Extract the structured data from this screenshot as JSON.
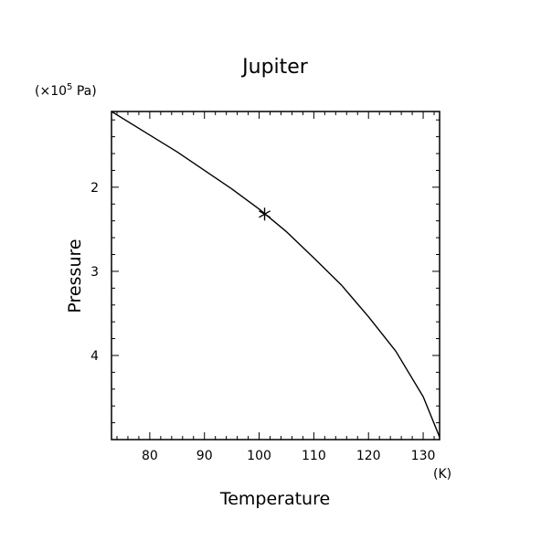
{
  "chart_data": {
    "type": "line",
    "title": "Jupiter",
    "xlabel": "Temperature",
    "ylabel": "Pressure",
    "x_unit": "(K)",
    "y_unit_prefix": "(×10",
    "y_unit_exp": "5",
    "y_unit_suffix": " Pa)",
    "xlim": [
      73,
      133
    ],
    "ylim": [
      1.1,
      5.0
    ],
    "y_inverted": true,
    "x_ticks": [
      80,
      90,
      100,
      110,
      120,
      130
    ],
    "x_tick_labels": [
      "80",
      "90",
      "100",
      "110",
      "120",
      "130"
    ],
    "y_ticks": [
      2,
      3,
      4
    ],
    "y_tick_labels": [
      "2",
      "3",
      "4"
    ],
    "series": [
      {
        "x": [
          73,
          80,
          85,
          90,
          95,
          100,
          105,
          110,
          115,
          120,
          125,
          130,
          133
        ],
        "y": [
          1.1,
          1.38,
          1.58,
          1.8,
          2.02,
          2.26,
          2.53,
          2.84,
          3.16,
          3.54,
          3.95,
          4.49,
          4.97
        ],
        "color": "#000000"
      }
    ],
    "marker": {
      "x": 101,
      "y": 2.32,
      "symbol": "asterisk"
    },
    "grid": false
  }
}
